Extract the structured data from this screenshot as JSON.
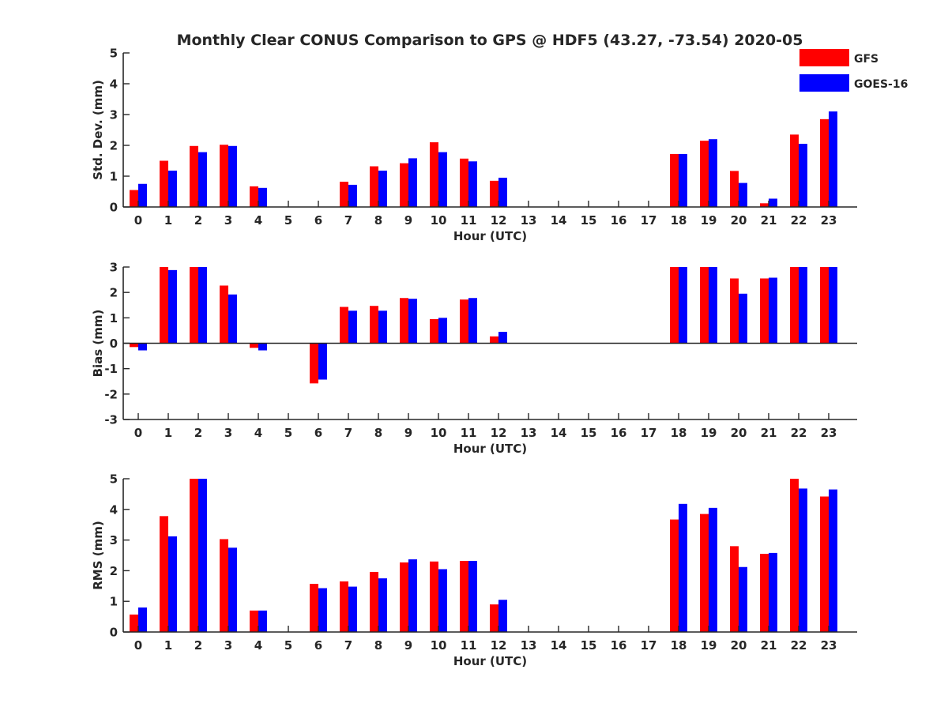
{
  "figure": {
    "title": "Monthly Clear CONUS Comparison to GPS @ HDF5 (43.27, -73.54) 2020-05"
  },
  "legend": {
    "placement": "top-right (outside plot area)",
    "entries": [
      {
        "label": "GFS",
        "color": "#ff0000"
      },
      {
        "label": "GOES-16",
        "color": "#0000ff"
      }
    ]
  },
  "chart_data": [
    {
      "type": "bar",
      "xlabel": "Hour (UTC)",
      "ylabel": "Std. Dev. (mm)",
      "ylim": [
        0,
        5
      ],
      "yticks": [
        0,
        1,
        2,
        3,
        4,
        5
      ],
      "categories": [
        "0",
        "1",
        "2",
        "3",
        "4",
        "5",
        "6",
        "7",
        "8",
        "9",
        "10",
        "11",
        "12",
        "13",
        "14",
        "15",
        "16",
        "17",
        "18",
        "19",
        "20",
        "21",
        "22",
        "23"
      ],
      "series": [
        {
          "name": "GFS",
          "color": "#ff0000",
          "values": [
            0.55,
            1.5,
            1.98,
            2.02,
            0.67,
            null,
            null,
            0.82,
            1.32,
            1.42,
            2.1,
            1.57,
            0.85,
            null,
            null,
            null,
            null,
            null,
            1.72,
            2.15,
            1.17,
            0.12,
            2.35,
            2.85
          ]
        },
        {
          "name": "GOES-16",
          "color": "#0000ff",
          "values": [
            0.75,
            1.18,
            1.78,
            1.98,
            0.62,
            null,
            null,
            0.72,
            1.18,
            1.58,
            1.78,
            1.48,
            0.95,
            null,
            null,
            null,
            null,
            null,
            1.72,
            2.2,
            0.78,
            0.27,
            2.05,
            3.1
          ]
        }
      ]
    },
    {
      "type": "bar",
      "xlabel": "Hour (UTC)",
      "ylabel": "Bias (mm)",
      "ylim": [
        -3,
        3
      ],
      "yticks": [
        -3,
        -2,
        -1,
        0,
        1,
        2,
        3
      ],
      "categories": [
        "0",
        "1",
        "2",
        "3",
        "4",
        "5",
        "6",
        "7",
        "8",
        "9",
        "10",
        "11",
        "12",
        "13",
        "14",
        "15",
        "16",
        "17",
        "18",
        "19",
        "20",
        "21",
        "22",
        "23"
      ],
      "series": [
        {
          "name": "GFS",
          "color": "#ff0000",
          "values": [
            -0.15,
            3.0,
            3.0,
            2.27,
            -0.18,
            null,
            -1.58,
            1.43,
            1.47,
            1.78,
            0.95,
            1.72,
            0.27,
            null,
            null,
            null,
            null,
            null,
            3.0,
            3.0,
            2.55,
            2.55,
            3.0,
            3.0
          ]
        },
        {
          "name": "GOES-16",
          "color": "#0000ff",
          "values": [
            -0.28,
            2.88,
            3.0,
            1.92,
            -0.28,
            null,
            -1.43,
            1.28,
            1.28,
            1.75,
            1.0,
            1.78,
            0.45,
            null,
            null,
            null,
            null,
            null,
            3.0,
            3.0,
            1.95,
            2.58,
            3.0,
            3.0
          ]
        }
      ]
    },
    {
      "type": "bar",
      "xlabel": "Hour (UTC)",
      "ylabel": "RMS (mm)",
      "ylim": [
        0,
        5
      ],
      "yticks": [
        0,
        1,
        2,
        3,
        4,
        5
      ],
      "categories": [
        "0",
        "1",
        "2",
        "3",
        "4",
        "5",
        "6",
        "7",
        "8",
        "9",
        "10",
        "11",
        "12",
        "13",
        "14",
        "15",
        "16",
        "17",
        "18",
        "19",
        "20",
        "21",
        "22",
        "23"
      ],
      "series": [
        {
          "name": "GFS",
          "color": "#ff0000",
          "values": [
            0.57,
            3.78,
            5.0,
            3.03,
            0.7,
            null,
            1.57,
            1.65,
            1.96,
            2.27,
            2.3,
            2.32,
            0.9,
            null,
            null,
            null,
            null,
            null,
            3.67,
            3.85,
            2.8,
            2.55,
            5.0,
            4.42
          ]
        },
        {
          "name": "GOES-16",
          "color": "#0000ff",
          "values": [
            0.8,
            3.12,
            5.0,
            2.75,
            0.7,
            null,
            1.43,
            1.48,
            1.75,
            2.37,
            2.05,
            2.32,
            1.05,
            null,
            null,
            null,
            null,
            null,
            4.18,
            4.05,
            2.12,
            2.58,
            4.68,
            4.65
          ]
        }
      ]
    }
  ]
}
